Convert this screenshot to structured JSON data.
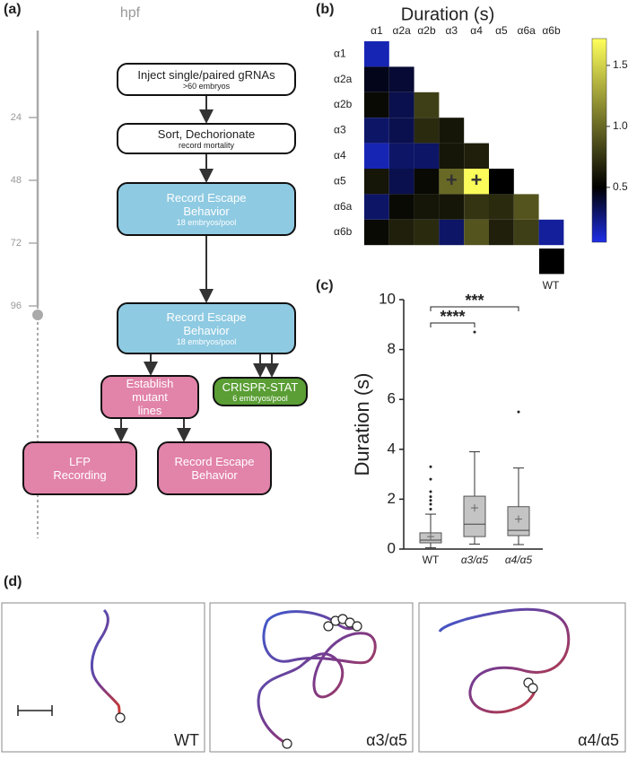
{
  "panel_labels": [
    "(a)",
    "(b)",
    "(c)",
    "(d)"
  ],
  "timeline": {
    "label": "hpf",
    "ticks": [
      24,
      48,
      72,
      96
    ],
    "lim": [
      0,
      96
    ]
  },
  "flowchart": {
    "nodes": [
      {
        "title": "Inject single/paired gRNAs",
        "subtitle": ">60 embryos"
      },
      {
        "title": "Sort, Dechorionate",
        "subtitle": "record mortality"
      },
      {
        "title": "Record Escape Behavior",
        "subtitle": "18 embryos/pool"
      },
      {
        "title": "Record Escape Behavior",
        "subtitle": "18 embryos/pool"
      },
      {
        "title": "Establish mutant lines"
      },
      {
        "title": "CRISPR-STAT",
        "subtitle": "6 embryos/pool"
      },
      {
        "title": "LFP Recording"
      },
      {
        "title": "Record Escape Behavior"
      }
    ]
  },
  "chart_data": [
    {
      "type": "heatmap",
      "title": "Duration (s)",
      "x_categories": [
        "α1",
        "α2a",
        "α2b",
        "α3",
        "α4",
        "α5",
        "α6a",
        "α6b"
      ],
      "y_categories": [
        "α1",
        "α2a",
        "α2b",
        "α3",
        "α4",
        "α5",
        "α6a",
        "α6b"
      ],
      "values": [
        [
          0.15
        ],
        [
          0.45,
          0.4
        ],
        [
          0.55,
          0.35,
          0.8
        ],
        [
          0.3,
          0.35,
          0.7,
          0.6
        ],
        [
          0.15,
          0.3,
          0.3,
          0.6,
          0.65
        ],
        [
          0.6,
          0.35,
          0.55,
          1.0,
          1.7,
          0.5
        ],
        [
          0.3,
          0.55,
          0.6,
          0.6,
          0.75,
          0.7,
          0.9
        ],
        [
          0.55,
          0.65,
          0.7,
          0.3,
          0.9,
          0.65,
          0.8,
          0.2
        ]
      ],
      "cell_labels": [
        [
          null
        ],
        [
          null,
          null
        ],
        [
          null,
          null,
          null
        ],
        [
          null,
          null,
          null,
          null
        ],
        [
          null,
          null,
          null,
          null,
          null
        ],
        [
          null,
          null,
          null,
          "+",
          "+",
          null
        ],
        [
          null,
          null,
          null,
          null,
          null,
          null,
          null
        ],
        [
          null,
          null,
          null,
          null,
          null,
          null,
          null,
          null
        ]
      ],
      "wt_label": "WT",
      "wt_value": 0.5,
      "zlim": [
        0.05,
        1.72
      ],
      "zticks": [
        0.5,
        {
          "value": 1,
          "label": "1.0"
        },
        1.5
      ],
      "colorscale": [
        {
          "value": 0.05,
          "color": "#1e2fe8"
        },
        {
          "value": 0.5,
          "color": "#000000"
        },
        {
          "value": 1.72,
          "color": "#ffff5c"
        }
      ]
    },
    {
      "type": "box",
      "ylabel": "Duration (s)",
      "categories": [
        "WT",
        "α3/α5",
        "α4/α5"
      ],
      "color": "#c4c4c4",
      "ylim": [
        0,
        10
      ],
      "yticks": [
        0,
        2,
        4,
        6,
        8,
        10
      ],
      "boxes": [
        {
          "whisker_low": 0.05,
          "q1": 0.25,
          "median": 0.36,
          "q3": 0.65,
          "whisker_high": 1.4,
          "mean": 0.5,
          "outliers": [
            1.6,
            1.8,
            1.95,
            2.1,
            2.3,
            2.8,
            3.3
          ]
        },
        {
          "whisker_low": 0.2,
          "q1": 0.5,
          "median": 1.0,
          "q3": 2.12,
          "whisker_high": 3.9,
          "mean": 1.65,
          "outliers": [
            8.7
          ]
        },
        {
          "whisker_low": 0.18,
          "q1": 0.54,
          "median": 0.75,
          "q3": 1.7,
          "whisker_high": 3.25,
          "mean": 1.2,
          "outliers": [
            5.5
          ]
        }
      ],
      "significance": [
        {
          "label": "****",
          "pair": [
            "WT",
            "α3/α5"
          ]
        },
        {
          "label": "***",
          "pair": [
            "WT",
            "α4/α5"
          ]
        }
      ]
    }
  ],
  "trajectories": {
    "labels": [
      "WT",
      "α3/α5",
      "α4/α5"
    ]
  }
}
